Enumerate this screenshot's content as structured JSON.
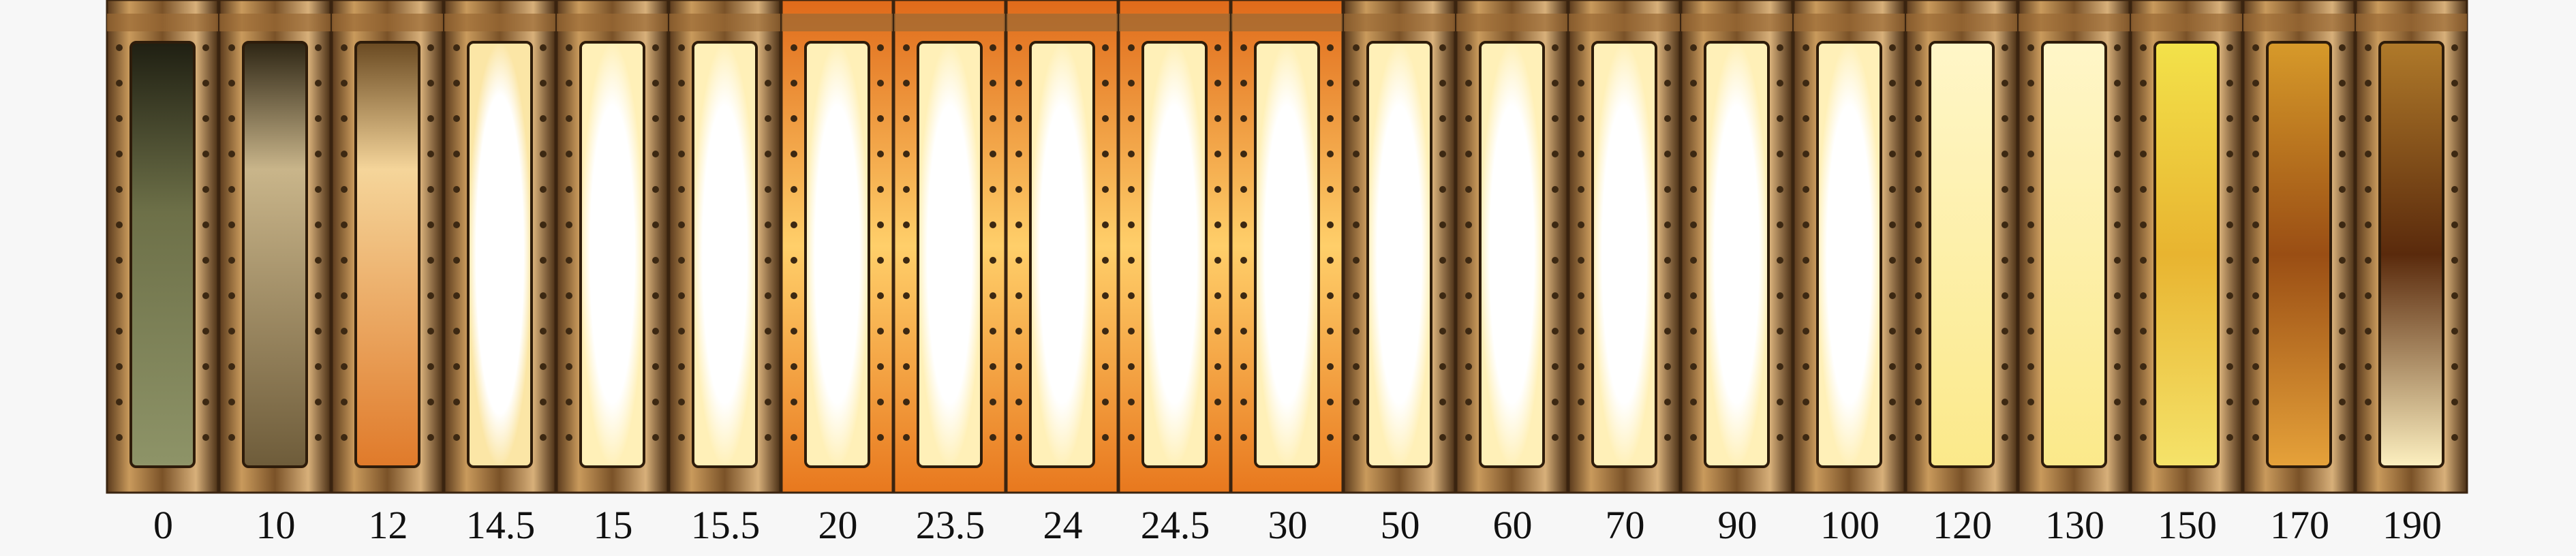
{
  "frames": {
    "labels": [
      "0",
      "10",
      "12",
      "14.5",
      "15",
      "15.5",
      "20",
      "23.5",
      "24",
      "24.5",
      "30",
      "50",
      "60",
      "70",
      "90",
      "100",
      "120",
      "130",
      "150",
      "170",
      "190"
    ]
  }
}
